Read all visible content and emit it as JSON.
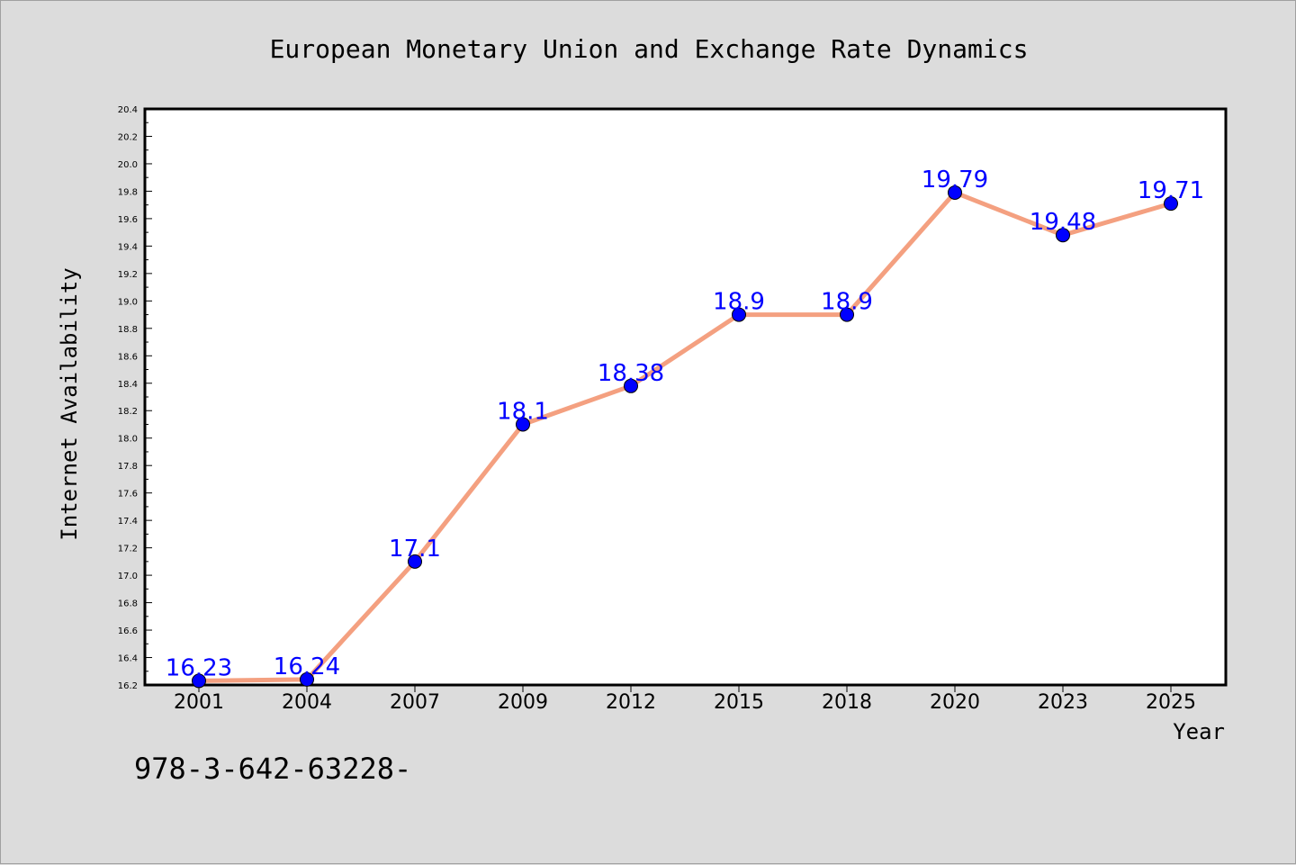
{
  "chart_data": {
    "type": "line",
    "title": "European Monetary Union and Exchange Rate Dynamics",
    "xlabel": "Year",
    "ylabel": "Internet Availability",
    "categories": [
      "2001",
      "2004",
      "2007",
      "2009",
      "2012",
      "2015",
      "2018",
      "2020",
      "2023",
      "2025"
    ],
    "series": [
      {
        "values": [
          16.23,
          16.24,
          17.1,
          18.1,
          18.38,
          18.9,
          18.9,
          19.79,
          19.48,
          19.71
        ],
        "labels": [
          "16.23",
          "16.24",
          "17.1",
          "18.1",
          "18.38",
          "18.9",
          "18.9",
          "19.79",
          "19.48",
          "19.71"
        ],
        "line_color": "#f4a080",
        "marker_color": "#0000ff",
        "label_color": "#0000ff"
      }
    ],
    "ylim": [
      16.2,
      20.4
    ],
    "yticks": [
      "16.2",
      "16.4",
      "16.6",
      "16.8",
      "17.0",
      "17.2",
      "17.4",
      "17.6",
      "17.8",
      "18.0",
      "18.2",
      "18.4",
      "18.6",
      "18.8",
      "19.0",
      "19.2",
      "19.4",
      "19.6",
      "19.8",
      "20.0",
      "20.2",
      "20.4"
    ],
    "grid": false,
    "legend": "none"
  },
  "footnote": "978-3-642-63228-",
  "colors": {
    "background": "#dcdcdc",
    "plot_background": "#ffffff",
    "line": "#f4a080",
    "marker": "#0000ff",
    "data_label": "#0000ff"
  }
}
